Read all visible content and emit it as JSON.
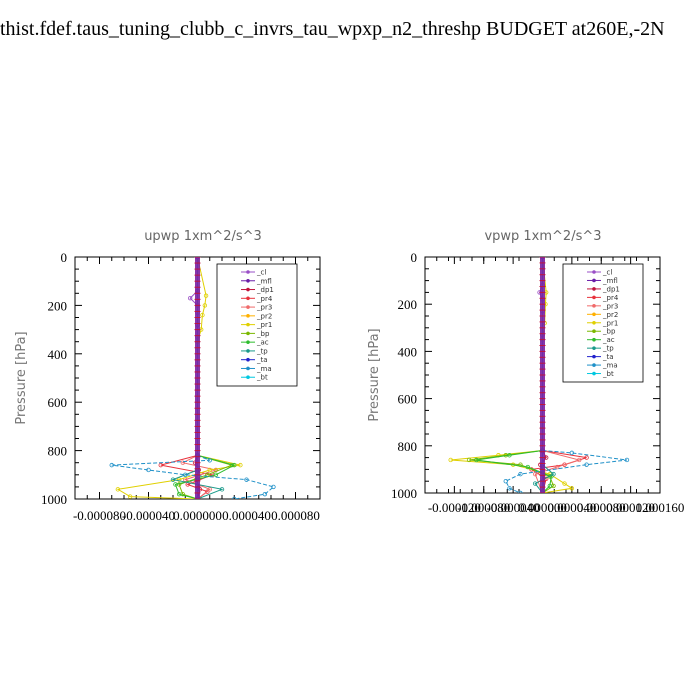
{
  "page_title": "thist.fdef.taus_tuning_clubb_c_invrs_tau_wpxp_n2_threshp  BUDGET at260E,-2N",
  "legend": [
    "_cl",
    "_mfl",
    "_dp1",
    "_pr4",
    "_pr3",
    "_pr2",
    "_pr1",
    "_bp",
    "_ac",
    "_tp",
    "_ta",
    "_ma",
    "_bt"
  ],
  "colors": {
    "_cl": "#9a4fc7",
    "_mfl": "#6a1ea8",
    "_dp1": "#c0143c",
    "_pr4": "#e8323c",
    "_pr3": "#f06a6a",
    "_pr2": "#ffb000",
    "_pr1": "#e0d000",
    "_bp": "#7ab800",
    "_ac": "#2ebd2e",
    "_tp": "#1a9a8a",
    "_ta": "#2222cc",
    "_ma": "#1e90c8",
    "_bt": "#00c8e0"
  },
  "chart_data": [
    {
      "type": "line",
      "title": "upwp   1xm^2/s^3",
      "ylabel": "Pressure [hPa]",
      "xlim": [
        -0.0001,
        0.0001
      ],
      "ylim": [
        1000,
        0
      ],
      "xticks": [
        "-0.000080",
        "-0.000040",
        "0.000000",
        "0.000040",
        "0.000080"
      ],
      "yticks": [
        "0",
        "200",
        "400",
        "600",
        "800",
        "1000"
      ],
      "series": [
        {
          "name": "_cl",
          "points": [
            [
              0,
              0
            ],
            [
              0,
              140
            ],
            [
              -6e-06,
              170
            ],
            [
              0,
              200
            ],
            [
              0,
              230
            ],
            [
              0,
              280
            ],
            [
              0,
              330
            ],
            [
              0,
              1000
            ]
          ]
        },
        {
          "name": "_mfl",
          "points": [
            [
              0,
              0
            ],
            [
              0,
              1000
            ]
          ]
        },
        {
          "name": "_dp1",
          "points": [
            [
              0,
              820
            ],
            [
              -2e-06,
              850
            ],
            [
              1e-06,
              880
            ],
            [
              -1e-06,
              920
            ],
            [
              2e-06,
              960
            ],
            [
              0,
              1000
            ]
          ]
        },
        {
          "name": "_pr4",
          "points": [
            [
              0,
              820
            ],
            [
              -3e-05,
              860
            ],
            [
              1.2e-05,
              900
            ],
            [
              -8e-06,
              940
            ],
            [
              8e-06,
              970
            ],
            [
              0,
              1000
            ]
          ]
        },
        {
          "name": "_pr3",
          "points": [
            [
              0,
              820
            ],
            [
              -1.2e-05,
              850
            ],
            [
              1.5e-05,
              880
            ],
            [
              -1e-05,
              920
            ],
            [
              1e-05,
              960
            ],
            [
              0,
              1000
            ]
          ]
        },
        {
          "name": "_pr2",
          "points": [
            [
              0,
              0
            ],
            [
              0,
              200
            ],
            [
              0,
              1000
            ]
          ]
        },
        {
          "name": "_pr1",
          "points": [
            [
              0,
              0
            ],
            [
              7e-06,
              160
            ],
            [
              6e-06,
              200
            ],
            [
              4e-06,
              240
            ],
            [
              3e-06,
              300
            ],
            [
              0,
              350
            ],
            [
              0,
              820
            ],
            [
              3.5e-05,
              860
            ],
            [
              1e-05,
              880
            ],
            [
              -1.5e-05,
              920
            ],
            [
              -6.5e-05,
              960
            ],
            [
              -5.5e-05,
              990
            ],
            [
              0,
              1000
            ]
          ]
        },
        {
          "name": "_bp",
          "points": [
            [
              0,
              820
            ],
            [
              2.8e-05,
              860
            ],
            [
              8e-06,
              900
            ],
            [
              -1.5e-05,
              940
            ],
            [
              -1.2e-05,
              980
            ],
            [
              0,
              1000
            ]
          ]
        },
        {
          "name": "_ac",
          "points": [
            [
              0,
              820
            ],
            [
              3e-05,
              860
            ],
            [
              1.5e-05,
              900
            ],
            [
              -1.8e-05,
              940
            ],
            [
              -1.5e-05,
              980
            ],
            [
              0,
              1000
            ]
          ]
        },
        {
          "name": "_tp",
          "points": [
            [
              0,
              880
            ],
            [
              -2e-05,
              920
            ],
            [
              2e-05,
              960
            ],
            [
              0,
              1000
            ]
          ]
        },
        {
          "name": "_ta",
          "points": [
            [
              0,
              0
            ],
            [
              0,
              1000
            ]
          ]
        },
        {
          "name": "_ma",
          "points": [
            [
              0,
              820
            ],
            [
              1e-05,
              840
            ],
            [
              -7e-05,
              860
            ],
            [
              -4e-05,
              880
            ],
            [
              -1e-05,
              900
            ],
            [
              4e-05,
              920
            ],
            [
              6.2e-05,
              950
            ],
            [
              5.5e-05,
              980
            ],
            [
              3e-05,
              1000
            ]
          ]
        },
        {
          "name": "_bt",
          "points": [
            [
              0,
              0
            ],
            [
              0,
              1000
            ]
          ]
        }
      ]
    },
    {
      "type": "line",
      "title": "vpwp   1xm^2/s^3",
      "ylabel": "Pressure [hPa]",
      "xlim": [
        -0.00016,
        0.00016
      ],
      "ylim": [
        1000,
        0
      ],
      "xticks": [
        "-0.000120",
        "-0.000080",
        "-0.000040",
        "0.000000",
        "0.000040",
        "0.000080",
        "0.000120",
        "0.000160"
      ],
      "yticks": [
        "0",
        "200",
        "400",
        "600",
        "800",
        "1000"
      ],
      "series": [
        {
          "name": "_cl",
          "points": [
            [
              0,
              0
            ],
            [
              0,
              120
            ],
            [
              -4e-06,
              150
            ],
            [
              0,
              180
            ],
            [
              0,
              230
            ],
            [
              0,
              330
            ],
            [
              0,
              1000
            ]
          ]
        },
        {
          "name": "_mfl",
          "points": [
            [
              0,
              0
            ],
            [
              0,
              1000
            ]
          ]
        },
        {
          "name": "_dp1",
          "points": [
            [
              0,
              820
            ],
            [
              5e-06,
              850
            ],
            [
              -3e-06,
              880
            ],
            [
              2e-06,
              920
            ],
            [
              0,
              1000
            ]
          ]
        },
        {
          "name": "_pr4",
          "points": [
            [
              0,
              820
            ],
            [
              6e-05,
              850
            ],
            [
              3e-05,
              880
            ],
            [
              -1.5e-05,
              900
            ],
            [
              5e-06,
              940
            ],
            [
              0,
              1000
            ]
          ]
        },
        {
          "name": "_pr3",
          "points": [
            [
              0,
              820
            ],
            [
              5e-05,
              860
            ],
            [
              2e-05,
              890
            ],
            [
              -1e-05,
              920
            ],
            [
              0,
              1000
            ]
          ]
        },
        {
          "name": "_pr2",
          "points": [
            [
              0,
              0
            ],
            [
              0,
              1000
            ]
          ]
        },
        {
          "name": "_pr1",
          "points": [
            [
              0,
              0
            ],
            [
              5e-06,
              150
            ],
            [
              4e-06,
              200
            ],
            [
              3e-06,
              280
            ],
            [
              0,
              350
            ],
            [
              0,
              820
            ],
            [
              -6e-05,
              840
            ],
            [
              -0.000125,
              860
            ],
            [
              -4e-05,
              880
            ],
            [
              1e-05,
              920
            ],
            [
              3e-05,
              960
            ],
            [
              4e-05,
              980
            ],
            [
              0,
              1000
            ]
          ]
        },
        {
          "name": "_bp",
          "points": [
            [
              0,
              820
            ],
            [
              -5e-05,
              840
            ],
            [
              -0.0001,
              860
            ],
            [
              -3e-05,
              880
            ],
            [
              1e-05,
              930
            ],
            [
              1.5e-05,
              970
            ],
            [
              0,
              1000
            ]
          ]
        },
        {
          "name": "_ac",
          "points": [
            [
              0,
              820
            ],
            [
              -4.5e-05,
              840
            ],
            [
              -9e-05,
              860
            ],
            [
              -2e-05,
              890
            ],
            [
              1.2e-05,
              930
            ],
            [
              1e-05,
              970
            ],
            [
              0,
              1000
            ]
          ]
        },
        {
          "name": "_tp",
          "points": [
            [
              0,
              880
            ],
            [
              1.5e-05,
              920
            ],
            [
              -1e-05,
              960
            ],
            [
              0,
              1000
            ]
          ]
        },
        {
          "name": "_ta",
          "points": [
            [
              0,
              0
            ],
            [
              0,
              1000
            ]
          ]
        },
        {
          "name": "_ma",
          "points": [
            [
              0,
              820
            ],
            [
              4e-05,
              830
            ],
            [
              0.000115,
              860
            ],
            [
              6e-05,
              880
            ],
            [
              -3e-05,
              920
            ],
            [
              -5e-05,
              950
            ],
            [
              -4.5e-05,
              980
            ],
            [
              -3e-05,
              1000
            ]
          ]
        },
        {
          "name": "_bt",
          "points": [
            [
              0,
              0
            ],
            [
              0,
              1000
            ]
          ]
        }
      ]
    }
  ]
}
